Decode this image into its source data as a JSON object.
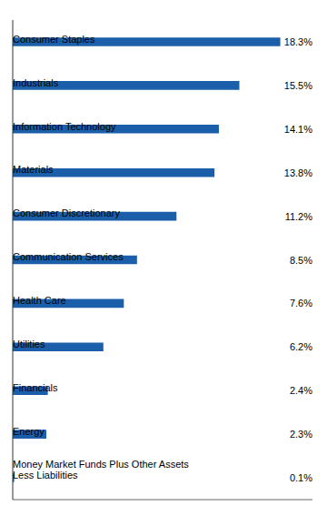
{
  "chart_data": {
    "type": "bar",
    "orientation": "horizontal",
    "categories": [
      "Money Market Funds Plus Other Assets\nLess Liabilities",
      "Energy",
      "Financials",
      "Utilities",
      "Health Care",
      "Communication Services",
      "Consumer Discretionary",
      "Materials",
      "Information Technology",
      "Industrials",
      "Consumer Staples"
    ],
    "values": [
      0.1,
      2.3,
      2.4,
      6.2,
      7.6,
      8.5,
      11.2,
      13.8,
      14.1,
      15.5,
      18.3
    ],
    "value_labels": [
      "0.1%",
      "2.3%",
      "2.4%",
      "6.2%",
      "7.6%",
      "8.5%",
      "11.2%",
      "13.8%",
      "14.1%",
      "15.5%",
      "18.3%"
    ],
    "color": "#1B5FAA",
    "xlim": [
      0,
      20.5
    ],
    "grid": false,
    "data_labels": true,
    "tick_labels": false
  }
}
